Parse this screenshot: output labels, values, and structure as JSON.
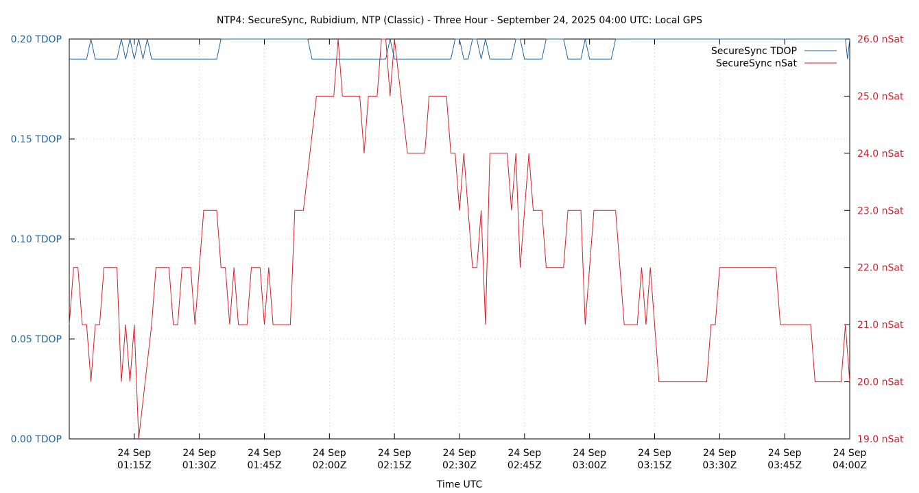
{
  "chart_data": {
    "type": "line",
    "title": "NTP4: SecureSync, Rubidium, NTP (Classic) - Three Hour - September 24, 2025 04:00 UTC: Local GPS",
    "xlabel": "Time UTC",
    "ylabel_left": "",
    "ylabel_right": "",
    "x_range": [
      "2025-09-24T01:00:00Z",
      "2025-09-24T04:00:00Z"
    ],
    "x_ticks": [
      {
        "time": "2025-09-24T01:15:00Z",
        "line1": "24 Sep",
        "line2": "01:15Z"
      },
      {
        "time": "2025-09-24T01:30:00Z",
        "line1": "24 Sep",
        "line2": "01:30Z"
      },
      {
        "time": "2025-09-24T01:45:00Z",
        "line1": "24 Sep",
        "line2": "01:45Z"
      },
      {
        "time": "2025-09-24T02:00:00Z",
        "line1": "24 Sep",
        "line2": "02:00Z"
      },
      {
        "time": "2025-09-24T02:15:00Z",
        "line1": "24 Sep",
        "line2": "02:15Z"
      },
      {
        "time": "2025-09-24T02:30:00Z",
        "line1": "24 Sep",
        "line2": "02:30Z"
      },
      {
        "time": "2025-09-24T02:45:00Z",
        "line1": "24 Sep",
        "line2": "02:45Z"
      },
      {
        "time": "2025-09-24T03:00:00Z",
        "line1": "24 Sep",
        "line2": "03:00Z"
      },
      {
        "time": "2025-09-24T03:15:00Z",
        "line1": "24 Sep",
        "line2": "03:15Z"
      },
      {
        "time": "2025-09-24T03:30:00Z",
        "line1": "24 Sep",
        "line2": "03:30Z"
      },
      {
        "time": "2025-09-24T03:45:00Z",
        "line1": "24 Sep",
        "line2": "03:45Z"
      },
      {
        "time": "2025-09-24T04:00:00Z",
        "line1": "24 Sep",
        "line2": "04:00Z"
      }
    ],
    "y_left": {
      "range": [
        0.0,
        0.2
      ],
      "ticks": [
        0.0,
        0.05,
        0.1,
        0.15,
        0.2
      ],
      "tick_labels": [
        "0.00 TDOP",
        "0.05 TDOP",
        "0.10 TDOP",
        "0.15 TDOP",
        "0.20 TDOP"
      ],
      "color": "#1f64a0"
    },
    "y_right": {
      "range": [
        19.0,
        26.0
      ],
      "ticks": [
        19,
        20,
        21,
        22,
        23,
        24,
        25,
        26
      ],
      "tick_labels": [
        "19.0 nSat",
        "20.0 nSat",
        "21.0 nSat",
        "22.0 nSat",
        "23.0 nSat",
        "24.0 nSat",
        "25.0 nSat",
        "26.0 nSat"
      ],
      "color": "#d0202a"
    },
    "grid": true,
    "legend_position": "top-right",
    "series": [
      {
        "name": "SecureSync TDOP",
        "axis": "left",
        "color": "#1f64a0",
        "points": [
          [
            "01:00:00",
            0.19
          ],
          [
            "01:04:00",
            0.19
          ],
          [
            "01:05:00",
            0.2
          ],
          [
            "01:06:00",
            0.19
          ],
          [
            "01:11:00",
            0.19
          ],
          [
            "01:12:00",
            0.2
          ],
          [
            "01:13:00",
            0.19
          ],
          [
            "01:14:00",
            0.2
          ],
          [
            "01:15:00",
            0.19
          ],
          [
            "01:16:00",
            0.2
          ],
          [
            "01:17:00",
            0.19
          ],
          [
            "01:18:00",
            0.2
          ],
          [
            "01:19:00",
            0.19
          ],
          [
            "01:34:00",
            0.19
          ],
          [
            "01:35:00",
            0.2
          ],
          [
            "01:55:00",
            0.2
          ],
          [
            "01:56:00",
            0.19
          ],
          [
            "02:13:00",
            0.19
          ],
          [
            "02:14:00",
            0.2
          ],
          [
            "02:15:00",
            0.19
          ],
          [
            "02:28:00",
            0.19
          ],
          [
            "02:29:00",
            0.2
          ],
          [
            "02:30:00",
            0.2
          ],
          [
            "02:31:00",
            0.19
          ],
          [
            "02:32:00",
            0.19
          ],
          [
            "02:33:00",
            0.2
          ],
          [
            "02:34:00",
            0.2
          ],
          [
            "02:35:00",
            0.19
          ],
          [
            "02:36:00",
            0.2
          ],
          [
            "02:37:00",
            0.19
          ],
          [
            "02:42:00",
            0.19
          ],
          [
            "02:43:00",
            0.2
          ],
          [
            "02:44:00",
            0.2
          ],
          [
            "02:45:00",
            0.19
          ],
          [
            "02:49:00",
            0.19
          ],
          [
            "02:50:00",
            0.2
          ],
          [
            "02:54:00",
            0.2
          ],
          [
            "02:55:00",
            0.19
          ],
          [
            "02:58:00",
            0.19
          ],
          [
            "02:59:00",
            0.2
          ],
          [
            "03:00:00",
            0.19
          ],
          [
            "03:05:00",
            0.19
          ],
          [
            "03:06:00",
            0.2
          ],
          [
            "03:59:00",
            0.2
          ],
          [
            "03:59:30",
            0.19
          ],
          [
            "04:00:00",
            0.2
          ]
        ]
      },
      {
        "name": "SecureSync nSat",
        "axis": "right",
        "color": "#d0202a",
        "points": [
          [
            "01:00:00",
            21.0
          ],
          [
            "01:01:00",
            22.0
          ],
          [
            "01:02:00",
            22.0
          ],
          [
            "01:03:00",
            21.0
          ],
          [
            "01:04:00",
            21.0
          ],
          [
            "01:05:00",
            20.0
          ],
          [
            "01:06:00",
            21.0
          ],
          [
            "01:07:00",
            21.0
          ],
          [
            "01:08:00",
            22.0
          ],
          [
            "01:11:00",
            22.0
          ],
          [
            "01:12:00",
            20.0
          ],
          [
            "01:13:00",
            21.0
          ],
          [
            "01:14:00",
            20.0
          ],
          [
            "01:15:00",
            21.0
          ],
          [
            "01:16:00",
            19.0
          ],
          [
            "01:19:00",
            21.0
          ],
          [
            "01:20:00",
            22.0
          ],
          [
            "01:23:00",
            22.0
          ],
          [
            "01:24:00",
            21.0
          ],
          [
            "01:25:00",
            21.0
          ],
          [
            "01:26:00",
            22.0
          ],
          [
            "01:28:00",
            22.0
          ],
          [
            "01:29:00",
            21.0
          ],
          [
            "01:31:00",
            23.0
          ],
          [
            "01:34:00",
            23.0
          ],
          [
            "01:35:00",
            22.0
          ],
          [
            "01:36:00",
            22.0
          ],
          [
            "01:37:00",
            21.0
          ],
          [
            "01:38:00",
            22.0
          ],
          [
            "01:39:00",
            21.0
          ],
          [
            "01:41:00",
            21.0
          ],
          [
            "01:42:00",
            22.0
          ],
          [
            "01:44:00",
            22.0
          ],
          [
            "01:45:00",
            21.0
          ],
          [
            "01:46:00",
            22.0
          ],
          [
            "01:47:00",
            21.0
          ],
          [
            "01:51:00",
            21.0
          ],
          [
            "01:52:00",
            23.0
          ],
          [
            "01:54:00",
            23.0
          ],
          [
            "01:57:00",
            25.0
          ],
          [
            "02:01:00",
            25.0
          ],
          [
            "02:02:00",
            26.0
          ],
          [
            "02:03:00",
            25.0
          ],
          [
            "02:07:00",
            25.0
          ],
          [
            "02:08:00",
            24.0
          ],
          [
            "02:09:00",
            25.0
          ],
          [
            "02:11:00",
            25.0
          ],
          [
            "02:12:00",
            26.0
          ],
          [
            "02:13:00",
            26.0
          ],
          [
            "02:14:00",
            25.0
          ],
          [
            "02:15:00",
            26.0
          ],
          [
            "02:18:00",
            24.0
          ],
          [
            "02:22:00",
            24.0
          ],
          [
            "02:23:00",
            25.0
          ],
          [
            "02:27:00",
            25.0
          ],
          [
            "02:28:00",
            24.0
          ],
          [
            "02:29:00",
            24.0
          ],
          [
            "02:30:00",
            23.0
          ],
          [
            "02:31:00",
            24.0
          ],
          [
            "02:33:00",
            22.0
          ],
          [
            "02:34:00",
            22.0
          ],
          [
            "02:35:00",
            23.0
          ],
          [
            "02:36:00",
            21.0
          ],
          [
            "02:37:00",
            24.0
          ],
          [
            "02:41:00",
            24.0
          ],
          [
            "02:42:00",
            23.0
          ],
          [
            "02:43:00",
            24.0
          ],
          [
            "02:44:00",
            22.0
          ],
          [
            "02:45:00",
            23.0
          ],
          [
            "02:46:00",
            24.0
          ],
          [
            "02:47:00",
            23.0
          ],
          [
            "02:49:00",
            23.0
          ],
          [
            "02:50:00",
            22.0
          ],
          [
            "02:54:00",
            22.0
          ],
          [
            "02:55:00",
            23.0
          ],
          [
            "02:58:00",
            23.0
          ],
          [
            "02:59:00",
            21.0
          ],
          [
            "03:01:00",
            23.0
          ],
          [
            "03:06:00",
            23.0
          ],
          [
            "03:08:00",
            21.0
          ],
          [
            "03:11:00",
            21.0
          ],
          [
            "03:12:00",
            22.0
          ],
          [
            "03:13:00",
            21.0
          ],
          [
            "03:14:00",
            22.0
          ],
          [
            "03:16:00",
            20.0
          ],
          [
            "03:27:00",
            20.0
          ],
          [
            "03:28:00",
            21.0
          ],
          [
            "03:29:00",
            21.0
          ],
          [
            "03:30:00",
            22.0
          ],
          [
            "03:43:00",
            22.0
          ],
          [
            "03:44:00",
            21.0
          ],
          [
            "03:51:00",
            21.0
          ],
          [
            "03:52:00",
            20.0
          ],
          [
            "03:58:00",
            20.0
          ],
          [
            "03:59:00",
            21.0
          ],
          [
            "04:00:00",
            20.0
          ]
        ]
      }
    ]
  }
}
